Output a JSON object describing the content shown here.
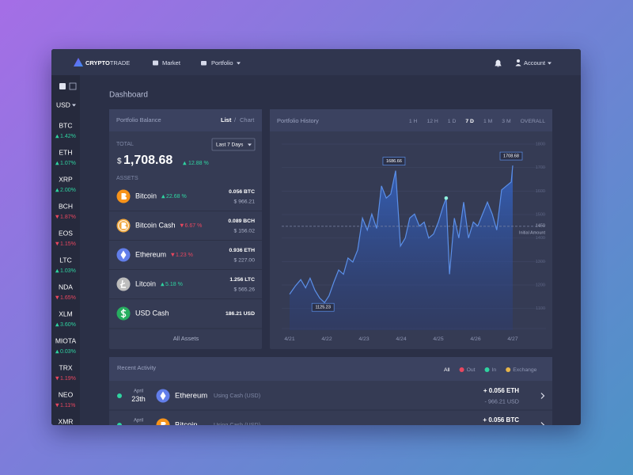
{
  "nav": {
    "brand_bold": "CRYPTO",
    "brand_light": "TRADE",
    "items": [
      "Market",
      "Portfolio"
    ],
    "account": "Account"
  },
  "sidebar": {
    "currency": "USD",
    "coins": [
      {
        "symbol": "BTC",
        "change": "1.42%",
        "direction": "up"
      },
      {
        "symbol": "ETH",
        "change": "1.07%",
        "direction": "up"
      },
      {
        "symbol": "XRP",
        "change": "2.00%",
        "direction": "up"
      },
      {
        "symbol": "BCH",
        "change": "1.87%",
        "direction": "down"
      },
      {
        "symbol": "EOS",
        "change": "1.15%",
        "direction": "down"
      },
      {
        "symbol": "LTC",
        "change": "1.03%",
        "direction": "up"
      },
      {
        "symbol": "NDA",
        "change": "1.65%",
        "direction": "down"
      },
      {
        "symbol": "XLM",
        "change": "3.60%",
        "direction": "up"
      },
      {
        "symbol": "MIOTA",
        "change": "0.03%",
        "direction": "up"
      },
      {
        "symbol": "TRX",
        "change": "1.19%",
        "direction": "down"
      },
      {
        "symbol": "NEO",
        "change": "1.11%",
        "direction": "down"
      },
      {
        "symbol": "XMR"
      }
    ]
  },
  "page_title": "Dashboard",
  "balance": {
    "title": "Portfolio Balance",
    "views": [
      "List",
      "Chart"
    ],
    "view_separator": "/",
    "active_view": 0,
    "total_label": "TOTAL",
    "period": "Last 7 Days",
    "currency_symbol": "$",
    "total": "1,708.68",
    "total_change": "12.88 %",
    "total_direction": "up",
    "assets_label": "ASSETS",
    "assets": [
      {
        "name": "Bitcoin",
        "change": "22.68 %",
        "direction": "up",
        "amount": "0.056 BTC",
        "value": "$ 966.21",
        "color": "#f7931a",
        "icon": "btc"
      },
      {
        "name": "Bitcoin Cash",
        "change": "6.67 %",
        "direction": "down",
        "amount": "0.089 BCH",
        "value": "$ 156.02",
        "color": "#f0a63a",
        "icon": "bch"
      },
      {
        "name": "Ethereum",
        "change": "1.23 %",
        "direction": "down",
        "amount": "0.936 ETH",
        "value": "$ 227.00",
        "color": "#627eea",
        "icon": "eth"
      },
      {
        "name": "Litcoin",
        "change": "5.18 %",
        "direction": "up",
        "amount": "1.256 LTC",
        "value": "$ 565.26",
        "color": "#bdbdbd",
        "icon": "ltc"
      },
      {
        "name": "USD Cash",
        "amount": "186.21 USD",
        "color": "#27ae60",
        "icon": "usd"
      }
    ],
    "footer": "All Assets"
  },
  "chart_data": {
    "type": "line",
    "title": "Portfolio History",
    "ranges": [
      "1 H",
      "12 H",
      "1 D",
      "7 D",
      "1 M",
      "3 M",
      "OVERALL"
    ],
    "active_range": 3,
    "x": [
      0,
      0.15,
      0.3,
      0.43,
      0.55,
      0.68,
      0.81,
      0.94,
      1.06,
      1.19,
      1.32,
      1.45,
      1.57,
      1.7,
      1.83,
      1.96,
      2.09,
      2.21,
      2.34,
      2.47,
      2.6,
      2.72,
      2.85,
      2.98,
      3.11,
      3.23,
      3.36,
      3.49,
      3.62,
      3.74,
      3.87,
      4,
      4.13,
      4.21,
      4.3,
      4.43,
      4.55,
      4.68,
      4.81,
      4.94,
      5.06,
      5.19,
      5.32,
      5.45,
      5.57,
      5.7,
      5.83,
      5.96,
      6
    ],
    "xlim": [
      0,
      6
    ],
    "xticks": [
      {
        "value": 0,
        "label": "4/21"
      },
      {
        "value": 1,
        "label": "4/22"
      },
      {
        "value": 2,
        "label": "4/23"
      },
      {
        "value": 3,
        "label": "4/24"
      },
      {
        "value": 4,
        "label": "4/25"
      },
      {
        "value": 5,
        "label": "4/26"
      },
      {
        "value": 6,
        "label": "4/27"
      }
    ],
    "series": [
      {
        "color": "#5b8fe8",
        "values": [
          1161,
          1195,
          1223,
          1188,
          1229,
          1178,
          1144,
          1125.23,
          1154,
          1212,
          1264,
          1246,
          1315,
          1298,
          1349,
          1485,
          1434,
          1502,
          1441,
          1622,
          1570,
          1587,
          1686.66,
          1366,
          1400,
          1485,
          1502,
          1451,
          1468,
          1400,
          1417,
          1468,
          1536,
          1570,
          1246,
          1485,
          1400,
          1553,
          1400,
          1468,
          1451,
          1502,
          1553,
          1502,
          1434,
          1605,
          1622,
          1639,
          1708.68
        ]
      }
    ],
    "ylim": [
      1008,
      1800
    ],
    "yticks": [
      1100,
      1200,
      1300,
      1400,
      1500,
      1600,
      1700,
      1800
    ],
    "grid": true,
    "reference": {
      "value": 1450,
      "label": "Initial Amount"
    },
    "labeled_points": [
      7,
      22,
      48
    ],
    "highlighted_point": 33
  },
  "activity": {
    "title": "Recent Activity",
    "filters": [
      {
        "label": "All"
      },
      {
        "label": "Out",
        "color": "#e8475f"
      },
      {
        "label": "In",
        "color": "#2fd3a0"
      },
      {
        "label": "Exchange",
        "color": "#e6b54a"
      }
    ],
    "active_filter": 0,
    "rows": [
      {
        "month": "April",
        "day": "23th",
        "asset": "Ethereum",
        "method": "Using Cash (USD)",
        "amount": "+ 0.056 ETH",
        "total": "- 966.21 USD",
        "color": "#627eea",
        "icon": "eth",
        "status_color": "#2fd3a0"
      },
      {
        "month": "April",
        "asset": "Bitcoin",
        "method": "Using Cash (USD)",
        "amount": "+ 0.056 BTC",
        "color": "#f7931a",
        "icon": "btc",
        "status_color": "#2fd3a0"
      }
    ]
  }
}
